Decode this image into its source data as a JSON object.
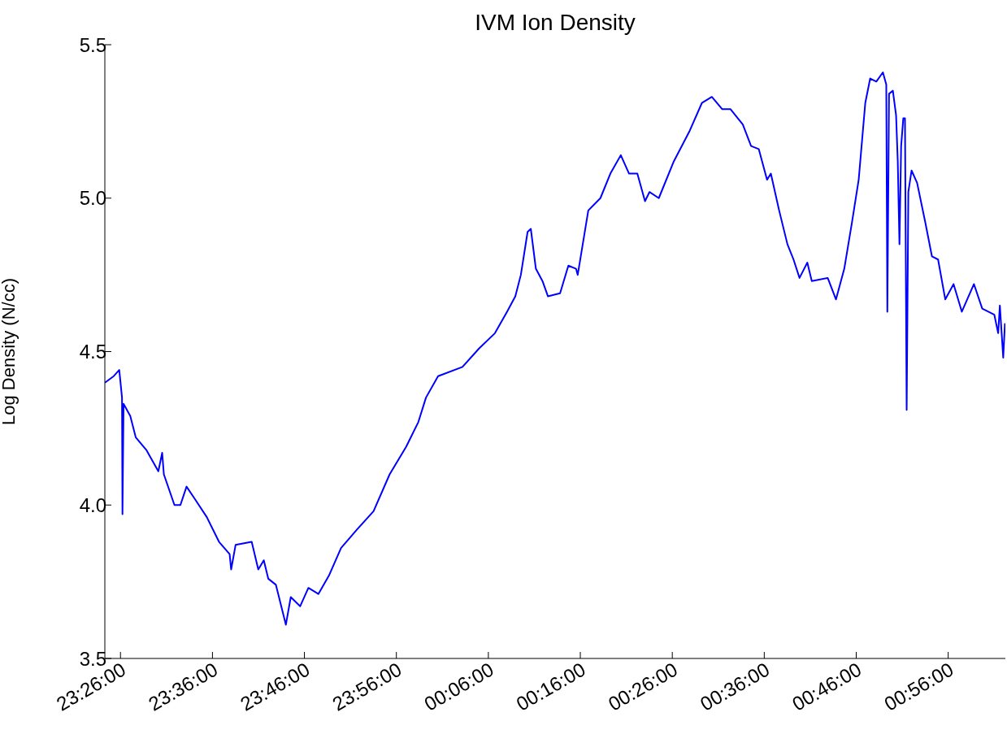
{
  "chart_data": {
    "type": "line",
    "title": "IVM Ion Density",
    "ylabel": "Log Density (N/cc)",
    "x": [
      "2000-01-01T23:24:22",
      "2000-01-01T23:25:16",
      "2000-01-01T23:25:52",
      "2000-01-01T23:26:10",
      "2000-01-01T23:26:13",
      "2000-01-01T23:26:20",
      "2000-01-01T23:27:04",
      "2000-01-01T23:27:40",
      "2000-01-01T23:28:48",
      "2000-01-01T23:30:07",
      "2000-01-01T23:30:32",
      "2000-01-01T23:30:43",
      "2000-01-01T23:31:52",
      "2000-01-01T23:32:31",
      "2000-01-01T23:33:11",
      "2000-01-01T23:34:05",
      "2000-01-01T23:35:24",
      "2000-01-01T23:36:43",
      "2000-01-01T23:37:52",
      "2000-01-01T23:38:02",
      "2000-01-01T23:38:31",
      "2000-01-01T23:40:16",
      "2000-01-01T23:40:59",
      "2000-01-01T23:41:35",
      "2000-01-01T23:42:04",
      "2000-01-01T23:42:54",
      "2000-01-01T23:43:59",
      "2000-01-01T23:44:31",
      "2000-01-01T23:45:32",
      "2000-01-01T23:46:26",
      "2000-01-01T23:47:31",
      "2000-01-01T23:48:40",
      "2000-01-01T23:49:59",
      "2000-01-01T23:51:43",
      "2000-01-01T23:53:31",
      "2000-01-01T23:55:16",
      "2000-01-01T23:57:04",
      "2000-01-01T23:58:23",
      "2000-01-01T23:59:13",
      "2000-01-02T00:00:32",
      "2000-01-02T00:03:11",
      "2000-01-02T00:04:59",
      "2000-01-02T00:06:43",
      "2000-01-02T00:08:02",
      "2000-01-02T00:08:56",
      "2000-01-02T00:09:32",
      "2000-01-02T00:10:16",
      "2000-01-02T00:10:37",
      "2000-01-02T00:11:10",
      "2000-01-02T00:11:53",
      "2000-01-02T00:12:29",
      "2000-01-02T00:13:48",
      "2000-01-02T00:14:42",
      "2000-01-02T00:15:32",
      "2000-01-02T00:15:43",
      "2000-01-02T00:16:52",
      "2000-01-02T00:18:11",
      "2000-01-02T00:19:16",
      "2000-01-02T00:20:24",
      "2000-01-02T00:21:18",
      "2000-01-02T00:22:12",
      "2000-01-02T00:23:02",
      "2000-01-02T00:23:31",
      "2000-01-02T00:24:32",
      "2000-01-02T00:26:10",
      "2000-01-02T00:27:54",
      "2000-01-02T00:29:13",
      "2000-01-02T00:30:18",
      "2000-01-02T00:31:26",
      "2000-01-02T00:32:20",
      "2000-01-02T00:33:40",
      "2000-01-02T00:34:34",
      "2000-01-02T00:35:24",
      "2000-01-02T00:36:18",
      "2000-01-02T00:36:43",
      "2000-01-02T00:37:37",
      "2000-01-02T00:38:31",
      "2000-01-02T00:39:11",
      "2000-01-02T00:39:50",
      "2000-01-02T00:40:41",
      "2000-01-02T00:41:10",
      "2000-01-02T00:42:54",
      "2000-01-02T00:43:48",
      "2000-01-02T00:44:42",
      "2000-01-02T00:45:32",
      "2000-01-02T00:46:16",
      "2000-01-02T00:46:59",
      "2000-01-02T00:47:31",
      "2000-01-02T00:48:11",
      "2000-01-02T00:48:54",
      "2000-01-02T00:49:16",
      "2000-01-02T00:49:23",
      "2000-01-02T00:49:34",
      "2000-01-02T00:49:59",
      "2000-01-02T00:50:20",
      "2000-01-02T00:50:31",
      "2000-01-02T00:50:42",
      "2000-01-02T00:50:53",
      "2000-01-02T00:51:07",
      "2000-01-02T00:51:18",
      "2000-01-02T00:51:29",
      "2000-01-02T00:51:40",
      "2000-01-02T00:52:01",
      "2000-01-02T00:52:37",
      "2000-01-02T00:53:31",
      "2000-01-02T00:54:14",
      "2000-01-02T00:54:54",
      "2000-01-02T00:55:41",
      "2000-01-02T00:56:35",
      "2000-01-02T00:57:29",
      "2000-01-02T00:58:48",
      "2000-01-02T00:59:42",
      "2000-01-02T01:01:01",
      "2000-01-02T01:01:26",
      "2000-01-02T01:01:37",
      "2000-01-02T01:01:59",
      "2000-01-02T01:02:10"
    ],
    "series": [
      {
        "color": "#0000ff",
        "values": [
          4.4,
          4.42,
          4.44,
          4.35,
          3.97,
          4.33,
          4.29,
          4.22,
          4.18,
          4.11,
          4.17,
          4.1,
          4.0,
          4.0,
          4.06,
          4.02,
          3.96,
          3.88,
          3.84,
          3.79,
          3.87,
          3.88,
          3.79,
          3.82,
          3.76,
          3.74,
          3.61,
          3.7,
          3.67,
          3.73,
          3.71,
          3.77,
          3.86,
          3.92,
          3.98,
          4.1,
          4.19,
          4.27,
          4.35,
          4.42,
          4.45,
          4.51,
          4.56,
          4.63,
          4.68,
          4.75,
          4.89,
          4.9,
          4.77,
          4.73,
          4.68,
          4.69,
          4.78,
          4.77,
          4.75,
          4.96,
          5.0,
          5.08,
          5.14,
          5.08,
          5.08,
          4.99,
          5.02,
          5.0,
          5.12,
          5.22,
          5.31,
          5.33,
          5.29,
          5.29,
          5.24,
          5.17,
          5.16,
          5.06,
          5.08,
          4.96,
          4.85,
          4.8,
          4.74,
          4.79,
          4.73,
          4.74,
          4.67,
          4.77,
          4.92,
          5.06,
          5.31,
          5.39,
          5.38,
          5.41,
          5.37,
          4.63,
          5.34,
          5.35,
          5.27,
          5.12,
          4.85,
          5.17,
          5.26,
          5.26,
          4.31,
          5.02,
          5.09,
          5.05,
          4.92,
          4.81,
          4.8,
          4.67,
          4.72,
          4.63,
          4.72,
          4.64,
          4.62,
          4.56,
          4.65,
          4.48,
          4.59
        ]
      }
    ],
    "xlim": [
      "2000-01-01T23:24:18",
      "2000-01-02T01:02:13"
    ],
    "xticks": [
      {
        "value": "2000-01-01T23:26:00",
        "label": "23:26:00"
      },
      {
        "value": "2000-01-01T23:36:00",
        "label": "23:36:00"
      },
      {
        "value": "2000-01-01T23:46:00",
        "label": "23:46:00"
      },
      {
        "value": "2000-01-01T23:56:00",
        "label": "23:56:00"
      },
      {
        "value": "2000-01-02T00:06:00",
        "label": "00:06:00"
      },
      {
        "value": "2000-01-02T00:16:00",
        "label": "00:16:00"
      },
      {
        "value": "2000-01-02T00:26:00",
        "label": "00:26:00"
      },
      {
        "value": "2000-01-02T00:36:00",
        "label": "00:36:00"
      },
      {
        "value": "2000-01-02T00:46:00",
        "label": "00:46:00"
      },
      {
        "value": "2000-01-02T00:56:00",
        "label": "00:56:00"
      }
    ],
    "ylim": [
      3.5,
      5.5
    ],
    "yticks": [
      {
        "value": 3.5,
        "label": "3.5"
      },
      {
        "value": 4,
        "label": "4.0"
      },
      {
        "value": 4.5,
        "label": "4.5"
      },
      {
        "value": 5,
        "label": "5.0"
      },
      {
        "value": 5.5,
        "label": "5.5"
      }
    ],
    "grid": false
  }
}
